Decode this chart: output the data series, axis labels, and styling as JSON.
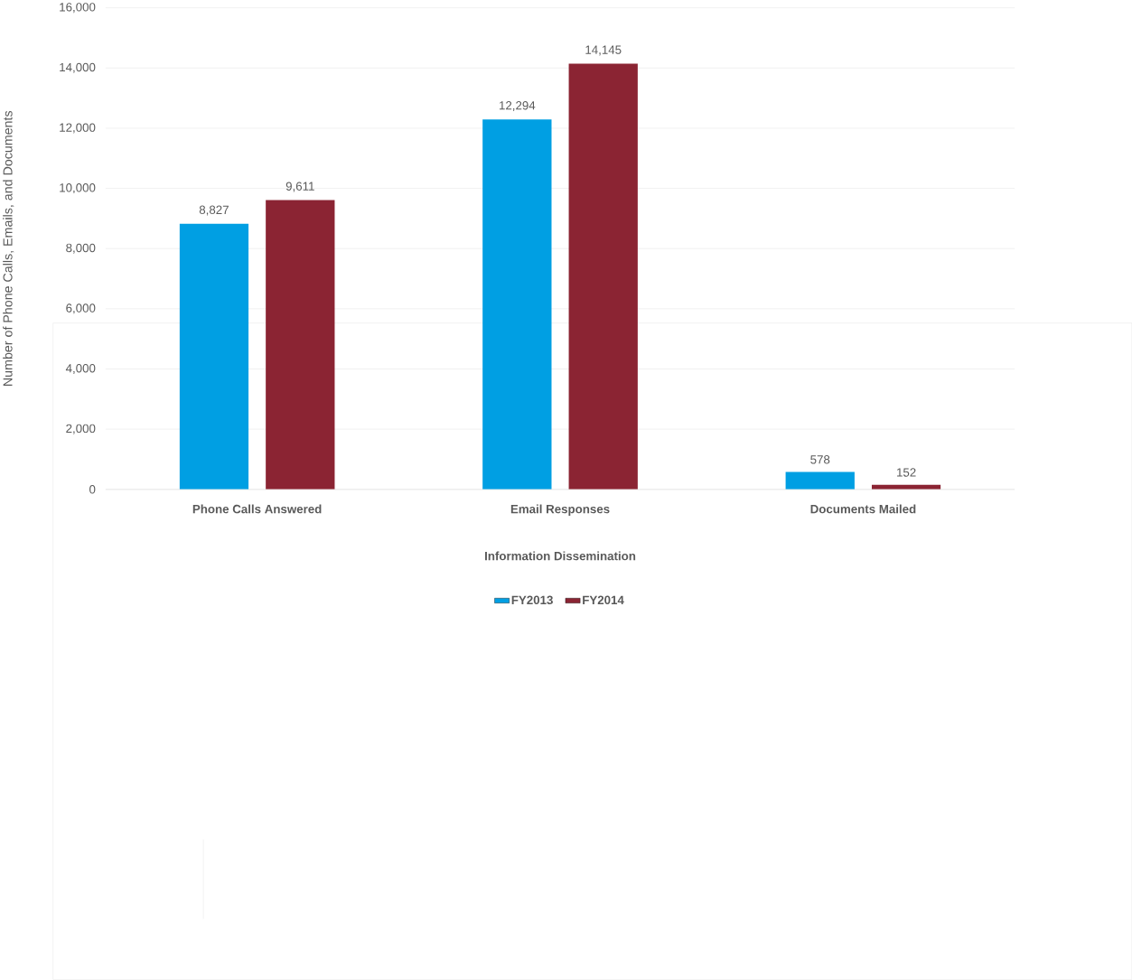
{
  "chart_data": {
    "type": "bar",
    "xlabel": "Information Dissemination",
    "ylabel": "Number of Phone Calls, Emails, and Documents",
    "categories": [
      "Phone Calls Answered",
      "Email Responses",
      "Documents Mailed"
    ],
    "series": [
      {
        "name": "FY2013",
        "color": "#009fe3",
        "values": [
          8827,
          12294,
          578
        ],
        "value_labels": [
          "8,827",
          "12,294",
          "578"
        ]
      },
      {
        "name": "FY2014",
        "color": "#8b2433",
        "values": [
          9611,
          14145,
          152
        ],
        "value_labels": [
          "9,611",
          "14,145",
          "152"
        ]
      }
    ],
    "ylim": [
      0,
      16000
    ],
    "yticks": [
      0,
      {
        "value": 2000,
        "label": "2,000"
      },
      {
        "value": 4000,
        "label": "4,000"
      },
      {
        "value": 6000,
        "label": "6,000"
      },
      {
        "value": 8000,
        "label": "8,000"
      },
      {
        "value": 10000,
        "label": "10,000"
      },
      {
        "value": 12000,
        "label": "12,000"
      },
      {
        "value": 14000,
        "label": "14,000"
      },
      {
        "value": 16000,
        "label": "16,000"
      }
    ],
    "grid": "y",
    "legend": "bottom"
  }
}
